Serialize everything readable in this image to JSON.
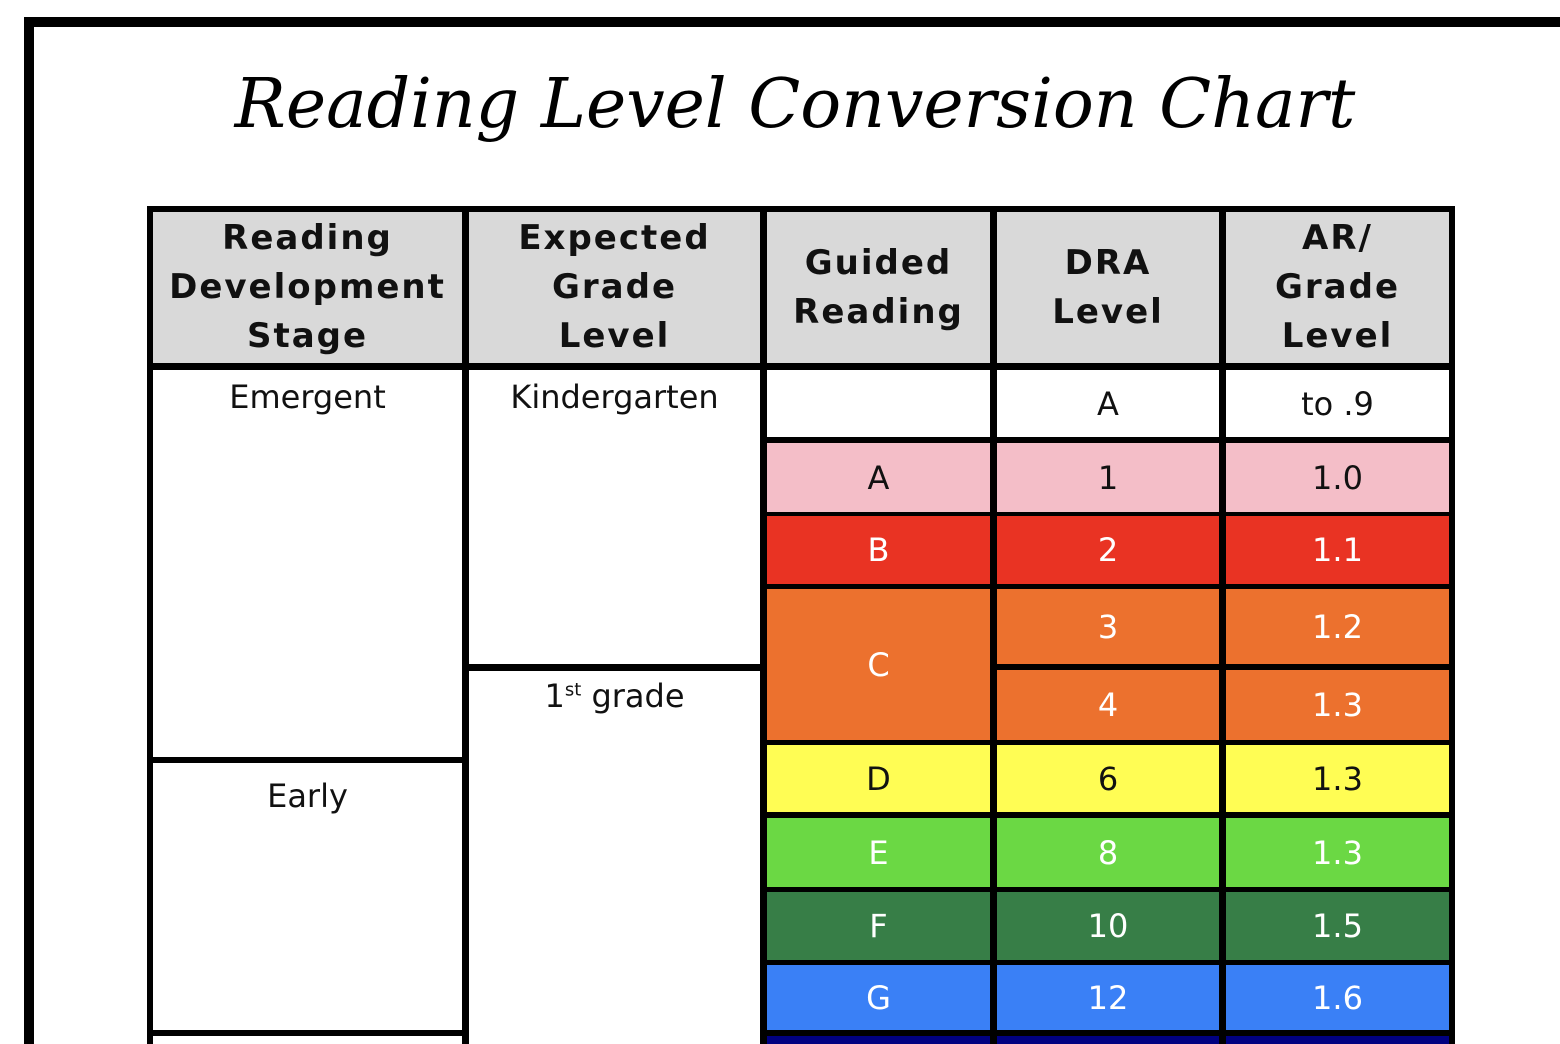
{
  "title": "Reading Level Conversion Chart",
  "headers": [
    "Reading Development Stage",
    "Expected Grade Level",
    "Guided Reading",
    "DRA Level",
    "AR/ Grade Level"
  ],
  "stages": [
    "Emergent",
    "Early"
  ],
  "grades": {
    "k": "Kindergarten",
    "first_num": "1",
    "first_sup": "st",
    "first_rest": " grade"
  },
  "rows": [
    {
      "guided": "",
      "dra": "A",
      "ar": "to .9",
      "color": "#ffffff"
    },
    {
      "guided": "A",
      "dra": "1",
      "ar": "1.0",
      "color": "#f4bec8"
    },
    {
      "guided": "B",
      "dra": "2",
      "ar": "1.1",
      "color": "#e93323"
    },
    {
      "guided": "C",
      "dra": "3",
      "ar": "1.2",
      "color": "#ec712e"
    },
    {
      "guided": "",
      "dra": "4",
      "ar": "1.3",
      "color": "#ec712e"
    },
    {
      "guided": "D",
      "dra": "6",
      "ar": "1.3",
      "color": "#fffd54"
    },
    {
      "guided": "E",
      "dra": "8",
      "ar": "1.3",
      "color": "#6bd844"
    },
    {
      "guided": "F",
      "dra": "10",
      "ar": "1.5",
      "color": "#377e47"
    },
    {
      "guided": "G",
      "dra": "12",
      "ar": "1.6",
      "color": "#3a80f6"
    },
    {
      "guided": "",
      "dra": "",
      "ar": "",
      "color": "#000080"
    }
  ]
}
